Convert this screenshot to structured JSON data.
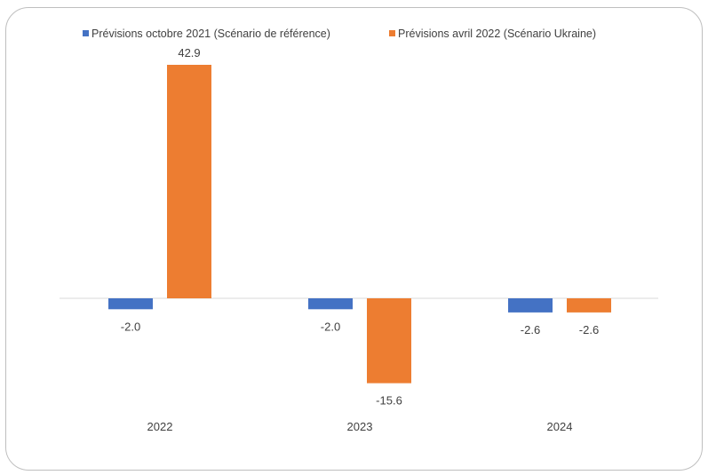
{
  "chart_data": {
    "type": "bar",
    "title": "",
    "xlabel": "",
    "ylabel": "",
    "categories": [
      "2022",
      "2023",
      "2024"
    ],
    "series": [
      {
        "name": "Prévisions octobre 2021 (Scénario de référence)",
        "color": "#4472C4",
        "values": [
          -2.0,
          -2.0,
          -2.6
        ],
        "labels": [
          "-2.0",
          "-2.0",
          "-2.6"
        ]
      },
      {
        "name": "Prévisions avril 2022  (Scénario Ukraine)",
        "color": "#ED7D31",
        "values": [
          42.9,
          -15.6,
          -2.6
        ],
        "labels": [
          "42.9",
          "-15.6",
          "-2.6"
        ]
      }
    ],
    "ylim": [
      -20,
      45
    ],
    "grid": false,
    "legend_position": "top"
  }
}
